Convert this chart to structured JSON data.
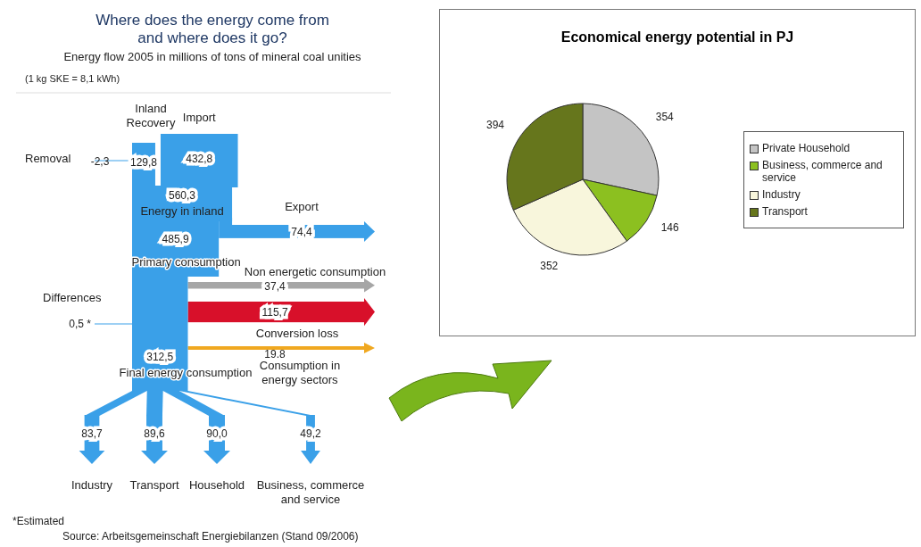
{
  "chart_data": [
    {
      "type": "other",
      "title": "Where does the energy come from and where does it go?",
      "subtitle": "Energy flow 2005 in millions of tons of mineral coal unities",
      "categories": [
        "Removal",
        "Inland Recovery",
        "Import",
        "Energy in inland",
        "Export",
        "Primary consumption",
        "Non energetic consumption",
        "Conversion loss",
        "Consumption in energy sectors",
        "Differences",
        "Final energy consumption",
        "Industry",
        "Transport",
        "Household",
        "Business, commerce and service"
      ],
      "values": [
        -2.3,
        129.8,
        432.8,
        560.3,
        74.4,
        485.9,
        37.4,
        115.7,
        19.8,
        0.5,
        312.5,
        83.7,
        89.6,
        90.0,
        49.2
      ],
      "value_labels": [
        "-2,3",
        "129,8",
        "432,8",
        "560,3",
        "74,4",
        "485,9",
        "37,4",
        "115,7",
        "19.8",
        "0,5 *",
        "312,5",
        "83,7",
        "89,6",
        "90,0",
        "49,2"
      ],
      "colors": [
        "#3aa0e8",
        "#3aa0e8",
        "#3aa0e8",
        "#3aa0e8",
        "#3aa0e8",
        "#3aa0e8",
        "#a6a6a6",
        "#d8102a",
        "#f0a820",
        "#3aa0e8",
        "#3aa0e8",
        "#3aa0e8",
        "#3aa0e8",
        "#3aa0e8",
        "#3aa0e8"
      ],
      "annotations": [
        "(1 kg SKE = 8,1 kWh)",
        "*Estimated",
        "Source: Arbeitsgemeinschaft Energiebilanzen (Stand 09/2006)"
      ]
    },
    {
      "type": "pie",
      "title": "Economical energy potential in PJ",
      "categories": [
        "Private Household",
        "Business, commerce and service",
        "Industry",
        "Transport"
      ],
      "values": [
        354,
        146,
        352,
        394
      ],
      "colors": [
        "#c4c4c4",
        "#8cc020",
        "#f8f6dc",
        "#66761c"
      ],
      "data_labels": true,
      "legend": "right"
    }
  ]
}
